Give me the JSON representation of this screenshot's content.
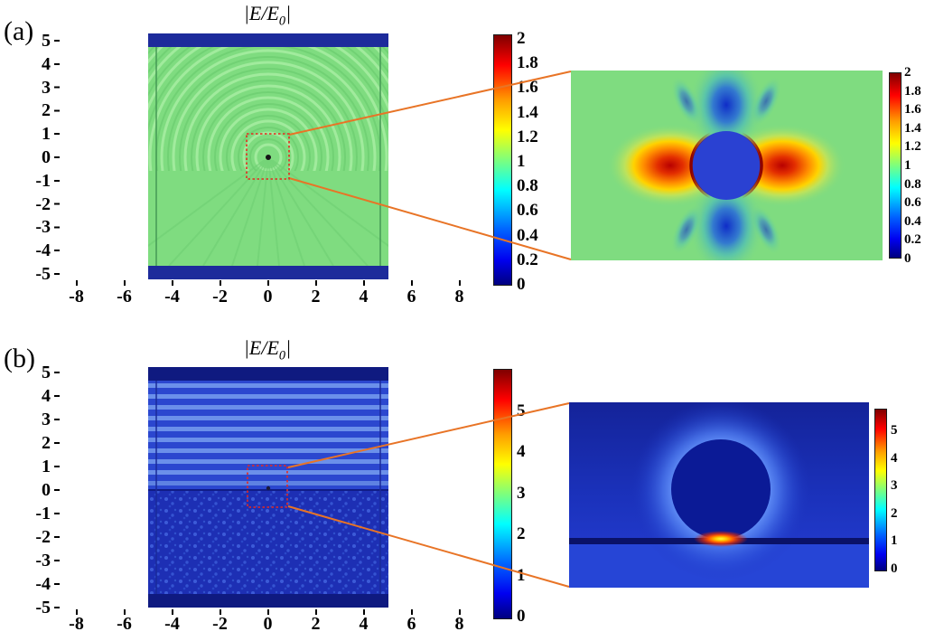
{
  "figure": {
    "panels": {
      "a": {
        "label": "(a)",
        "title": {
          "pre": "|E/E",
          "sub": "0",
          "post": "|"
        },
        "x_ticks": [
          "-8",
          "-6",
          "-4",
          "-2",
          "0",
          "2",
          "4",
          "6",
          "8"
        ],
        "y_ticks": [
          "5",
          "4",
          "3",
          "2",
          "1",
          "0",
          "-1",
          "-2",
          "-3",
          "-4",
          "-5"
        ],
        "colorbar_ticks": [
          "2",
          "1.8",
          "1.6",
          "1.4",
          "1.2",
          "1",
          "0.8",
          "0.6",
          "0.4",
          "0.2",
          "0"
        ],
        "inset_colorbar_ticks": [
          "2",
          "1.8",
          "1.6",
          "1.4",
          "1.2",
          "1",
          "0.8",
          "0.6",
          "0.4",
          "0.2",
          "0"
        ]
      },
      "b": {
        "label": "(b)",
        "title": {
          "pre": "|E/E",
          "sub": "0",
          "post": "|"
        },
        "x_ticks": [
          "-8",
          "-6",
          "-4",
          "-2",
          "0",
          "2",
          "4",
          "6",
          "8"
        ],
        "y_ticks": [
          "5",
          "4",
          "3",
          "2",
          "1",
          "0",
          "-1",
          "-2",
          "-3",
          "-4",
          "-5"
        ],
        "colorbar_ticks": [
          "5",
          "4",
          "3",
          "2",
          "1",
          "0"
        ],
        "inset_colorbar_ticks": [
          "5",
          "4",
          "3",
          "2",
          "1",
          "0"
        ]
      }
    },
    "colors": {
      "field_background_a": "#7fdc80",
      "field_background_b": "#2b47cf",
      "pml_band": "#1d2b9b",
      "zoom_box": "#e8281e",
      "leader_line": "#e87426"
    }
  },
  "chart_data": [
    {
      "type": "heatmap",
      "panel": "a",
      "title": "|E/E0|",
      "quantity": "normalized electric field magnitude",
      "xlim": [
        -8,
        8
      ],
      "ylim": [
        -5,
        5
      ],
      "x_ticks": [
        -8,
        -6,
        -4,
        -2,
        0,
        2,
        4,
        6,
        8
      ],
      "y_ticks": [
        5,
        4,
        3,
        2,
        1,
        0,
        -1,
        -2,
        -3,
        -4,
        -5
      ],
      "colormap": "jet",
      "color_min": 0,
      "color_max": 2,
      "colorbar_ticks": [
        2,
        1.8,
        1.6,
        1.4,
        1.2,
        1,
        0.8,
        0.6,
        0.4,
        0.2,
        0
      ],
      "background_field_level": 1.0,
      "scene": "single nanosphere at the origin in free space; circular interference fringes radiate from the particle inside a square simulation domain (|x|<=5, |y|<=5) with dark PML bands at top and bottom",
      "zoom_box": {
        "x": [
          -0.45,
          0.45
        ],
        "y": [
          -0.5,
          0.45
        ],
        "style": "red dotted"
      },
      "inset": {
        "color_min": 0,
        "color_max": 2,
        "colorbar_ticks": [
          2,
          1.8,
          1.6,
          1.4,
          1.2,
          1,
          0.8,
          0.6,
          0.4,
          0.2,
          0
        ],
        "scene": "dipolar near-field around the sphere: enhancement lobes reaching ~2 on the left and right sides, suppressed field ~0.2-0.4 above and below, uniform background ~1"
      }
    },
    {
      "type": "heatmap",
      "panel": "b",
      "title": "|E/E0|",
      "quantity": "normalized electric field magnitude",
      "xlim": [
        -8,
        8
      ],
      "ylim": [
        -5,
        5
      ],
      "x_ticks": [
        -8,
        -6,
        -4,
        -2,
        0,
        2,
        4,
        6,
        8
      ],
      "y_ticks": [
        5,
        4,
        3,
        2,
        1,
        0,
        -1,
        -2,
        -3,
        -4,
        -5
      ],
      "colormap": "jet",
      "color_min": 0,
      "color_max": 5,
      "colorbar_ticks": [
        5,
        4,
        3,
        2,
        1,
        0
      ],
      "scene": "nanosphere on a substrate (interface at y=0): horizontal standing-wave fringes above the surface, speckled scattered field below, dark PML bands at top and bottom",
      "zoom_box": {
        "x": [
          -0.45,
          0.45
        ],
        "y": [
          -0.65,
          0.9
        ],
        "style": "red dotted"
      },
      "inset": {
        "color_min": 0,
        "color_max": 5,
        "colorbar_ticks": [
          5,
          4,
          3,
          2,
          1,
          0
        ],
        "scene": "sphere resting on the substrate with a strong hot spot (~5) at the sphere-substrate contact point; dark low-field sphere interior"
      }
    }
  ]
}
